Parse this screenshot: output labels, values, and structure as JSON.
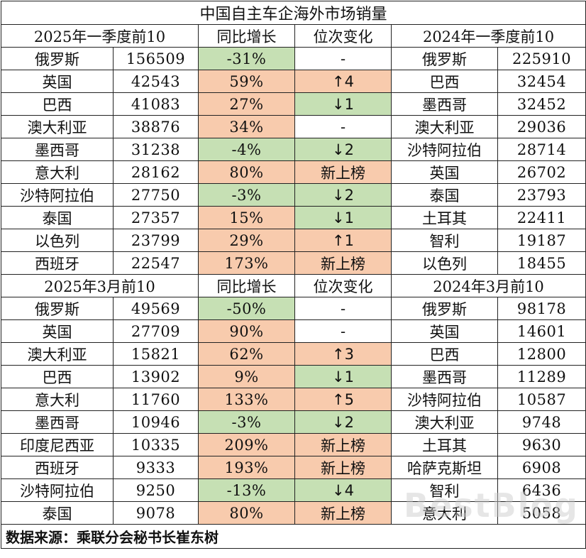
{
  "title": "中国自主车企海外市场销量",
  "colors": {
    "decline": "#c6e0b4",
    "growth": "#f8cbad",
    "border": "#222222"
  },
  "q1": {
    "headers": [
      "2025年一季度前10",
      "同比增长",
      "位次变化",
      "2024年一季度前10"
    ],
    "rows": [
      {
        "country": "俄罗斯",
        "sales": "156509",
        "yoy": "-31%",
        "rank": "-",
        "c24": "俄罗斯",
        "s24": "225910",
        "yoy_color": "green",
        "rank_color": ""
      },
      {
        "country": "英国",
        "sales": "42543",
        "yoy": "59%",
        "rank": "↑4",
        "c24": "巴西",
        "s24": "32454",
        "yoy_color": "orange",
        "rank_color": "orange"
      },
      {
        "country": "巴西",
        "sales": "41083",
        "yoy": "27%",
        "rank": "↓1",
        "c24": "墨西哥",
        "s24": "32452",
        "yoy_color": "orange",
        "rank_color": "green"
      },
      {
        "country": "澳大利亚",
        "sales": "38876",
        "yoy": "34%",
        "rank": "-",
        "c24": "澳大利亚",
        "s24": "29036",
        "yoy_color": "orange",
        "rank_color": ""
      },
      {
        "country": "墨西哥",
        "sales": "31238",
        "yoy": "-4%",
        "rank": "↓2",
        "c24": "沙特阿拉伯",
        "s24": "28714",
        "yoy_color": "green",
        "rank_color": "green"
      },
      {
        "country": "意大利",
        "sales": "28162",
        "yoy": "80%",
        "rank": "新上榜",
        "c24": "英国",
        "s24": "26702",
        "yoy_color": "orange",
        "rank_color": "orange"
      },
      {
        "country": "沙特阿拉伯",
        "sales": "27750",
        "yoy": "-3%",
        "rank": "↓2",
        "c24": "泰国",
        "s24": "23793",
        "yoy_color": "green",
        "rank_color": "green"
      },
      {
        "country": "泰国",
        "sales": "27357",
        "yoy": "15%",
        "rank": "↓1",
        "c24": "土耳其",
        "s24": "22411",
        "yoy_color": "orange",
        "rank_color": "green"
      },
      {
        "country": "以色列",
        "sales": "23799",
        "yoy": "29%",
        "rank": "↑1",
        "c24": "智利",
        "s24": "19187",
        "yoy_color": "orange",
        "rank_color": "orange"
      },
      {
        "country": "西班牙",
        "sales": "22547",
        "yoy": "173%",
        "rank": "新上榜",
        "c24": "以色列",
        "s24": "18455",
        "yoy_color": "orange",
        "rank_color": "orange"
      }
    ]
  },
  "march": {
    "headers": [
      "2025年3月前10",
      "同比增长",
      "位次变化",
      "2024年3月前10"
    ],
    "rows": [
      {
        "country": "俄罗斯",
        "sales": "49569",
        "yoy": "-50%",
        "rank": "-",
        "c24": "俄罗斯",
        "s24": "98178",
        "yoy_color": "green",
        "rank_color": ""
      },
      {
        "country": "英国",
        "sales": "27709",
        "yoy": "90%",
        "rank": "-",
        "c24": "英国",
        "s24": "14601",
        "yoy_color": "orange",
        "rank_color": ""
      },
      {
        "country": "澳大利亚",
        "sales": "15821",
        "yoy": "62%",
        "rank": "↑3",
        "c24": "巴西",
        "s24": "12800",
        "yoy_color": "orange",
        "rank_color": "orange"
      },
      {
        "country": "巴西",
        "sales": "13902",
        "yoy": "9%",
        "rank": "↓1",
        "c24": "墨西哥",
        "s24": "11289",
        "yoy_color": "orange",
        "rank_color": "green"
      },
      {
        "country": "意大利",
        "sales": "11760",
        "yoy": "133%",
        "rank": "↑5",
        "c24": "沙特阿拉伯",
        "s24": "10587",
        "yoy_color": "orange",
        "rank_color": "orange"
      },
      {
        "country": "墨西哥",
        "sales": "10946",
        "yoy": "-3%",
        "rank": "↓2",
        "c24": "澳大利亚",
        "s24": "9748",
        "yoy_color": "green",
        "rank_color": "green"
      },
      {
        "country": "印度尼西亚",
        "sales": "10335",
        "yoy": "209%",
        "rank": "新上榜",
        "c24": "土耳其",
        "s24": "9630",
        "yoy_color": "orange",
        "rank_color": "orange"
      },
      {
        "country": "西班牙",
        "sales": "9333",
        "yoy": "193%",
        "rank": "新上榜",
        "c24": "哈萨克斯坦",
        "s24": "6908",
        "yoy_color": "orange",
        "rank_color": "orange"
      },
      {
        "country": "沙特阿拉伯",
        "sales": "9250",
        "yoy": "-13%",
        "rank": "↓4",
        "c24": "智利",
        "s24": "6436",
        "yoy_color": "green",
        "rank_color": "green"
      },
      {
        "country": "泰国",
        "sales": "9078",
        "yoy": "80%",
        "rank": "新上榜",
        "c24": "意大利",
        "s24": "5058",
        "yoy_color": "orange",
        "rank_color": "orange"
      }
    ]
  },
  "source": "数据来源：乘联分会秘书长崔东树",
  "watermark": "BestBlog"
}
